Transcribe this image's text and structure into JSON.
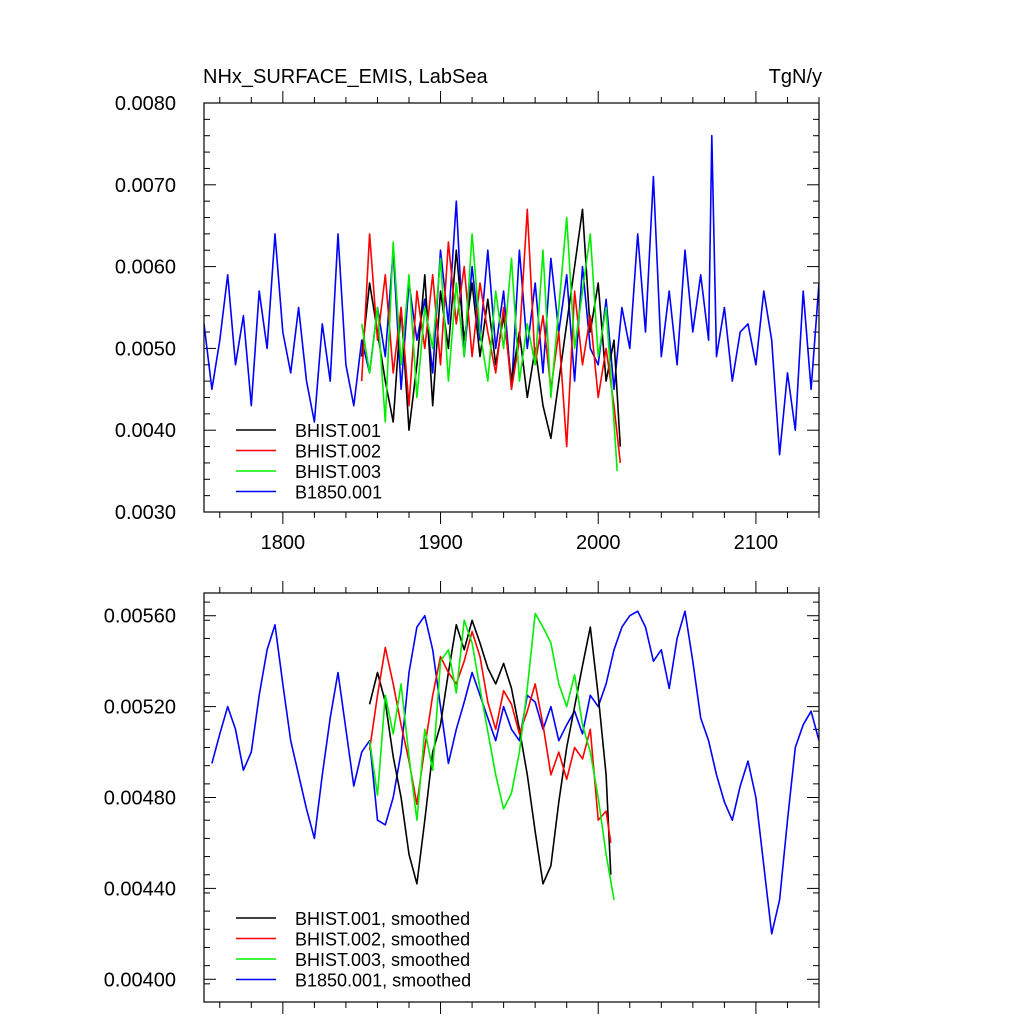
{
  "chart_data": [
    {
      "type": "line",
      "title": "NHx_SURFACE_EMIS, LabSea",
      "units": "TgN/y",
      "xlabel": "",
      "ylabel": "",
      "xlim": [
        1750,
        2140
      ],
      "ylim": [
        0.003,
        0.008
      ],
      "x_ticks": [
        1800,
        1900,
        2000,
        2100
      ],
      "x_tick_labels": [
        "1800",
        "1900",
        "2000",
        "2100"
      ],
      "y_ticks": [
        0.003,
        0.004,
        0.005,
        0.006,
        0.007,
        0.008
      ],
      "y_tick_labels": [
        "0.0030",
        "0.0040",
        "0.0050",
        "0.0060",
        "0.0070",
        "0.0080"
      ],
      "grid": false,
      "legend": "bottom-left",
      "series": [
        {
          "name": "BHIST.001",
          "color": "#000000",
          "x": [
            1850,
            1855,
            1860,
            1865,
            1870,
            1875,
            1880,
            1885,
            1890,
            1895,
            1900,
            1905,
            1910,
            1915,
            1920,
            1925,
            1930,
            1935,
            1940,
            1945,
            1950,
            1955,
            1960,
            1965,
            1970,
            1975,
            1980,
            1985,
            1990,
            1995,
            2000,
            2005,
            2010,
            2014
          ],
          "y": [
            0.0049,
            0.0058,
            0.0052,
            0.0046,
            0.0041,
            0.0055,
            0.004,
            0.0048,
            0.0059,
            0.0043,
            0.0057,
            0.005,
            0.0062,
            0.0051,
            0.0058,
            0.0049,
            0.0056,
            0.0048,
            0.0054,
            0.0046,
            0.0052,
            0.0044,
            0.005,
            0.0043,
            0.0039,
            0.0046,
            0.0053,
            0.006,
            0.0067,
            0.0052,
            0.0058,
            0.0046,
            0.0051,
            0.0038
          ]
        },
        {
          "name": "BHIST.002",
          "color": "#ff0000",
          "x": [
            1850,
            1855,
            1860,
            1865,
            1870,
            1875,
            1880,
            1885,
            1890,
            1895,
            1900,
            1905,
            1910,
            1915,
            1920,
            1925,
            1930,
            1935,
            1940,
            1945,
            1950,
            1955,
            1960,
            1965,
            1970,
            1975,
            1980,
            1985,
            1990,
            1995,
            2000,
            2005,
            2010,
            2014
          ],
          "y": [
            0.0046,
            0.0064,
            0.0051,
            0.0059,
            0.0047,
            0.0055,
            0.0043,
            0.0057,
            0.005,
            0.0059,
            0.0048,
            0.0063,
            0.0053,
            0.006,
            0.0049,
            0.0058,
            0.0052,
            0.0047,
            0.0055,
            0.0045,
            0.0051,
            0.0067,
            0.0048,
            0.0054,
            0.0045,
            0.0052,
            0.0038,
            0.0057,
            0.0048,
            0.0054,
            0.0044,
            0.005,
            0.0043,
            0.0036
          ]
        },
        {
          "name": "BHIST.003",
          "color": "#00ee00",
          "x": [
            1850,
            1855,
            1860,
            1865,
            1870,
            1875,
            1880,
            1885,
            1890,
            1895,
            1900,
            1905,
            1910,
            1915,
            1920,
            1925,
            1930,
            1935,
            1940,
            1945,
            1950,
            1955,
            1960,
            1965,
            1970,
            1975,
            1980,
            1985,
            1990,
            1995,
            2000,
            2005,
            2010,
            2012
          ],
          "y": [
            0.0053,
            0.0047,
            0.0055,
            0.0041,
            0.0063,
            0.0048,
            0.0059,
            0.0044,
            0.0055,
            0.005,
            0.0061,
            0.0046,
            0.0058,
            0.0049,
            0.0064,
            0.0052,
            0.0046,
            0.0057,
            0.005,
            0.0061,
            0.0046,
            0.0053,
            0.0048,
            0.0062,
            0.0044,
            0.0055,
            0.0066,
            0.005,
            0.0057,
            0.0064,
            0.0049,
            0.0055,
            0.0041,
            0.0035
          ]
        },
        {
          "name": "B1850.001",
          "color": "#0000ff",
          "x": [
            1750,
            1755,
            1760,
            1765,
            1770,
            1775,
            1780,
            1785,
            1790,
            1795,
            1800,
            1805,
            1810,
            1815,
            1820,
            1825,
            1830,
            1835,
            1840,
            1845,
            1850,
            1855,
            1860,
            1865,
            1870,
            1875,
            1880,
            1885,
            1890,
            1895,
            1900,
            1905,
            1910,
            1915,
            1920,
            1925,
            1930,
            1935,
            1940,
            1945,
            1950,
            1955,
            1960,
            1965,
            1970,
            1975,
            1980,
            1985,
            1990,
            1995,
            2000,
            2005,
            2010,
            2015,
            2020,
            2025,
            2030,
            2035,
            2040,
            2045,
            2050,
            2055,
            2060,
            2065,
            2070,
            2072,
            2075,
            2080,
            2085,
            2090,
            2095,
            2100,
            2105,
            2110,
            2115,
            2120,
            2125,
            2130,
            2135,
            2140
          ],
          "y": [
            0.0053,
            0.0045,
            0.0051,
            0.0059,
            0.0048,
            0.0054,
            0.0043,
            0.0057,
            0.005,
            0.0064,
            0.0052,
            0.0047,
            0.0055,
            0.0046,
            0.0041,
            0.0053,
            0.0046,
            0.0064,
            0.0048,
            0.0043,
            0.0051,
            0.0047,
            0.0055,
            0.0049,
            0.0062,
            0.0045,
            0.0058,
            0.0051,
            0.0056,
            0.0047,
            0.0062,
            0.0053,
            0.0068,
            0.0049,
            0.006,
            0.0051,
            0.0062,
            0.005,
            0.0057,
            0.0045,
            0.0062,
            0.005,
            0.0058,
            0.0047,
            0.0061,
            0.0052,
            0.0059,
            0.0046,
            0.006,
            0.005,
            0.0048,
            0.0056,
            0.0045,
            0.0055,
            0.005,
            0.0064,
            0.0052,
            0.0071,
            0.0049,
            0.0057,
            0.0048,
            0.0062,
            0.0052,
            0.0059,
            0.0051,
            0.0076,
            0.0049,
            0.0055,
            0.0046,
            0.0052,
            0.0053,
            0.0048,
            0.0057,
            0.0051,
            0.0037,
            0.0047,
            0.004,
            0.0057,
            0.0045,
            0.0058
          ]
        }
      ]
    },
    {
      "type": "line",
      "title": "",
      "xlabel": "",
      "ylabel": "",
      "xlim": [
        1750,
        2140
      ],
      "ylim": [
        0.0039,
        0.0057
      ],
      "x_ticks": [
        1800,
        1900,
        2000,
        2100
      ],
      "y_ticks": [
        0.004,
        0.0044,
        0.0048,
        0.0052,
        0.0056
      ],
      "y_tick_labels": [
        "0.00400",
        "0.00440",
        "0.00480",
        "0.00520",
        "0.00560"
      ],
      "grid": false,
      "legend": "bottom-left",
      "series": [
        {
          "name": "BHIST.001, smoothed",
          "color": "#000000",
          "x": [
            1855,
            1860,
            1865,
            1870,
            1875,
            1880,
            1885,
            1890,
            1895,
            1900,
            1905,
            1910,
            1915,
            1920,
            1925,
            1930,
            1935,
            1940,
            1945,
            1950,
            1955,
            1960,
            1965,
            1970,
            1975,
            1980,
            1985,
            1990,
            1995,
            2000,
            2005,
            2008
          ],
          "y": [
            0.00521,
            0.00535,
            0.00522,
            0.00498,
            0.0048,
            0.00455,
            0.00442,
            0.0047,
            0.005,
            0.00512,
            0.00535,
            0.00556,
            0.00545,
            0.00558,
            0.00548,
            0.00537,
            0.0053,
            0.00539,
            0.00528,
            0.0051,
            0.0049,
            0.00465,
            0.00442,
            0.0045,
            0.00478,
            0.00502,
            0.0052,
            0.00538,
            0.00555,
            0.00525,
            0.0049,
            0.00446
          ]
        },
        {
          "name": "BHIST.002, smoothed",
          "color": "#ff0000",
          "x": [
            1855,
            1860,
            1865,
            1870,
            1875,
            1880,
            1885,
            1890,
            1895,
            1900,
            1905,
            1910,
            1915,
            1920,
            1925,
            1930,
            1935,
            1940,
            1945,
            1950,
            1955,
            1960,
            1965,
            1970,
            1975,
            1980,
            1985,
            1990,
            1995,
            2000,
            2005,
            2008
          ],
          "y": [
            0.00501,
            0.00525,
            0.00546,
            0.0053,
            0.00512,
            0.00496,
            0.00477,
            0.00502,
            0.00525,
            0.00542,
            0.00535,
            0.0053,
            0.0054,
            0.00553,
            0.00542,
            0.00522,
            0.0051,
            0.00527,
            0.00521,
            0.00508,
            0.00518,
            0.0053,
            0.00512,
            0.0049,
            0.005,
            0.00488,
            0.00502,
            0.00497,
            0.0051,
            0.0047,
            0.00474,
            0.0046
          ]
        },
        {
          "name": "BHIST.003, smoothed",
          "color": "#00ee00",
          "x": [
            1855,
            1860,
            1865,
            1870,
            1875,
            1880,
            1885,
            1890,
            1895,
            1900,
            1905,
            1910,
            1915,
            1920,
            1925,
            1930,
            1935,
            1940,
            1945,
            1950,
            1955,
            1960,
            1965,
            1970,
            1975,
            1980,
            1985,
            1990,
            1995,
            2000,
            2005,
            2010
          ],
          "y": [
            0.00505,
            0.00481,
            0.00525,
            0.00508,
            0.0053,
            0.00498,
            0.0047,
            0.0051,
            0.00492,
            0.0054,
            0.00545,
            0.00526,
            0.00558,
            0.00548,
            0.00528,
            0.00509,
            0.0049,
            0.00475,
            0.00482,
            0.005,
            0.00528,
            0.00561,
            0.00555,
            0.00548,
            0.0053,
            0.0052,
            0.00534,
            0.00512,
            0.005,
            0.0048,
            0.00455,
            0.00435
          ]
        },
        {
          "name": "B1850.001, smoothed",
          "color": "#0000ff",
          "x": [
            1755,
            1760,
            1765,
            1770,
            1775,
            1780,
            1785,
            1790,
            1795,
            1800,
            1805,
            1810,
            1815,
            1820,
            1825,
            1830,
            1835,
            1840,
            1845,
            1850,
            1855,
            1860,
            1865,
            1870,
            1875,
            1880,
            1885,
            1890,
            1895,
            1900,
            1905,
            1910,
            1915,
            1920,
            1925,
            1930,
            1935,
            1940,
            1945,
            1950,
            1955,
            1960,
            1965,
            1970,
            1975,
            1980,
            1985,
            1990,
            1995,
            2000,
            2005,
            2010,
            2015,
            2020,
            2025,
            2030,
            2035,
            2040,
            2045,
            2050,
            2055,
            2060,
            2065,
            2070,
            2075,
            2080,
            2085,
            2090,
            2095,
            2100,
            2105,
            2110,
            2115,
            2120,
            2125,
            2130,
            2135,
            2140
          ],
          "y": [
            0.00495,
            0.00508,
            0.0052,
            0.0051,
            0.00492,
            0.005,
            0.00525,
            0.00545,
            0.00556,
            0.0053,
            0.00505,
            0.0049,
            0.00475,
            0.00462,
            0.0049,
            0.00515,
            0.00535,
            0.0051,
            0.00485,
            0.005,
            0.00505,
            0.0047,
            0.00468,
            0.0048,
            0.005,
            0.00535,
            0.00555,
            0.0056,
            0.00545,
            0.0052,
            0.00495,
            0.0051,
            0.00522,
            0.00535,
            0.00525,
            0.00515,
            0.00505,
            0.0052,
            0.0051,
            0.00505,
            0.00525,
            0.00522,
            0.0051,
            0.0052,
            0.00505,
            0.00512,
            0.00518,
            0.00508,
            0.00525,
            0.0052,
            0.0053,
            0.00545,
            0.00555,
            0.0056,
            0.00562,
            0.00555,
            0.0054,
            0.00545,
            0.00528,
            0.0055,
            0.00562,
            0.0054,
            0.00515,
            0.00505,
            0.0049,
            0.00478,
            0.0047,
            0.00485,
            0.00496,
            0.0048,
            0.0045,
            0.0042,
            0.00435,
            0.0047,
            0.00502,
            0.00512,
            0.00518,
            0.00505
          ]
        }
      ]
    }
  ]
}
